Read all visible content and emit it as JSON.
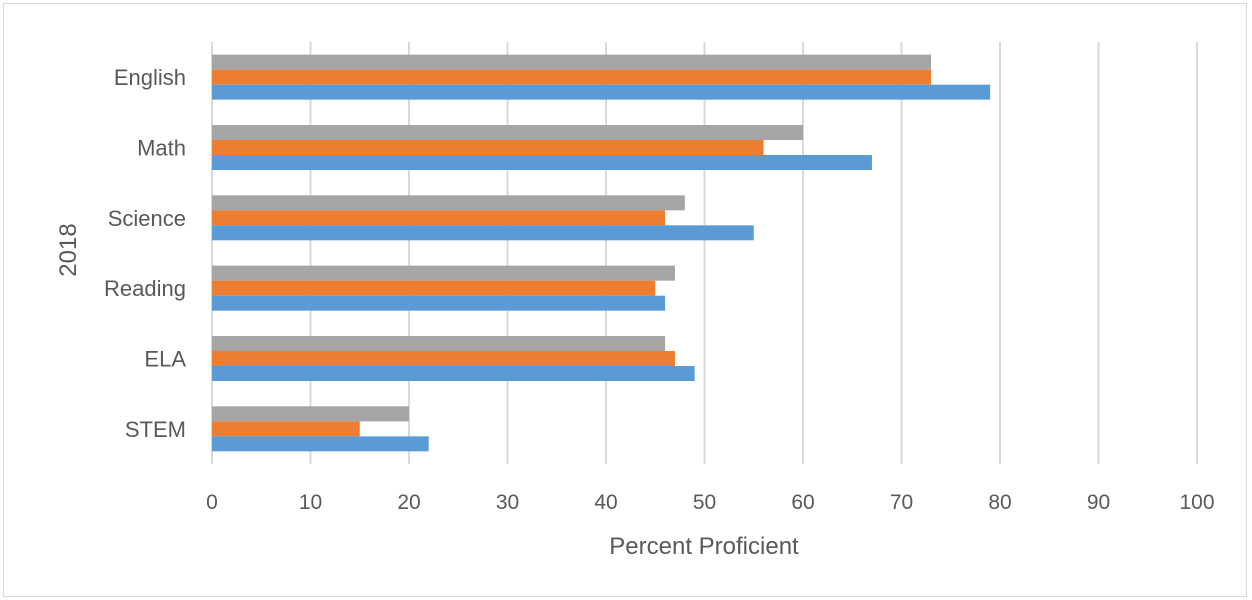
{
  "chart_data": {
    "type": "bar",
    "orientation": "horizontal",
    "categories": [
      "English",
      "Math",
      "Science",
      "Reading",
      "ELA",
      "STEM"
    ],
    "series": [
      {
        "color": "#a5a5a5",
        "values": [
          73,
          60,
          48,
          47,
          46,
          20
        ]
      },
      {
        "color": "#ed7d31",
        "values": [
          73,
          56,
          46,
          45,
          47,
          15
        ]
      },
      {
        "color": "#5b9bd5",
        "values": [
          79,
          67,
          55,
          46,
          49,
          22
        ]
      }
    ],
    "xticks": [
      "0",
      "10",
      "20",
      "30",
      "40",
      "50",
      "60",
      "70",
      "80",
      "90",
      "100"
    ],
    "xlim": [
      0,
      100
    ],
    "xlabel": "Percent Proficient",
    "ylabel": "2018",
    "grid": true,
    "legend": "none"
  }
}
